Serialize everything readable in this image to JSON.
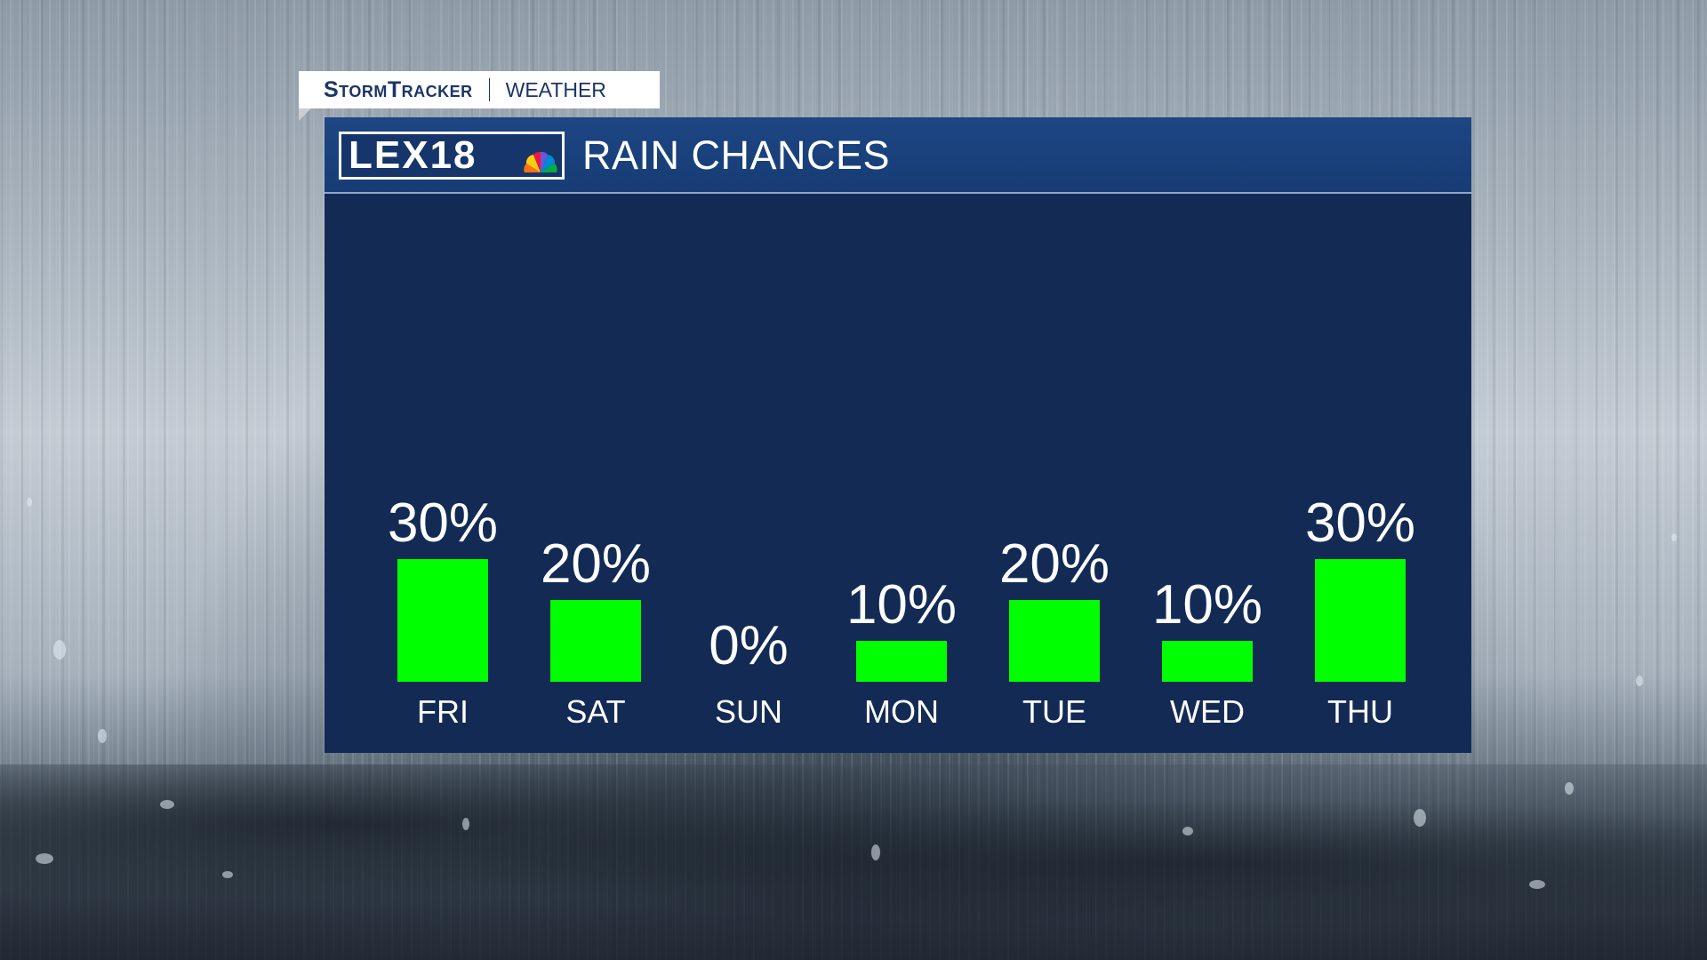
{
  "brand": {
    "storm_label": "StormTracker",
    "weather_label": "WEATHER",
    "logo_text": "LEX18",
    "peacock_icon": "nbc-peacock-icon"
  },
  "panel": {
    "title": "RAIN CHANCES"
  },
  "colors": {
    "bar": "#00ff00",
    "panel_bg": "#122a54",
    "header_bg": "#1d4683",
    "text": "#ffffff"
  },
  "chart_data": {
    "type": "bar",
    "title": "RAIN CHANCES",
    "categories": [
      "FRI",
      "SAT",
      "SUN",
      "MON",
      "TUE",
      "WED",
      "THU"
    ],
    "values": [
      30,
      20,
      0,
      10,
      20,
      10,
      30
    ],
    "data_labels": [
      "30%",
      "20%",
      "0%",
      "10%",
      "20%",
      "10%",
      "30%"
    ],
    "unit": "%",
    "ylim": [
      0,
      100
    ],
    "grid": false,
    "legend": "none"
  }
}
